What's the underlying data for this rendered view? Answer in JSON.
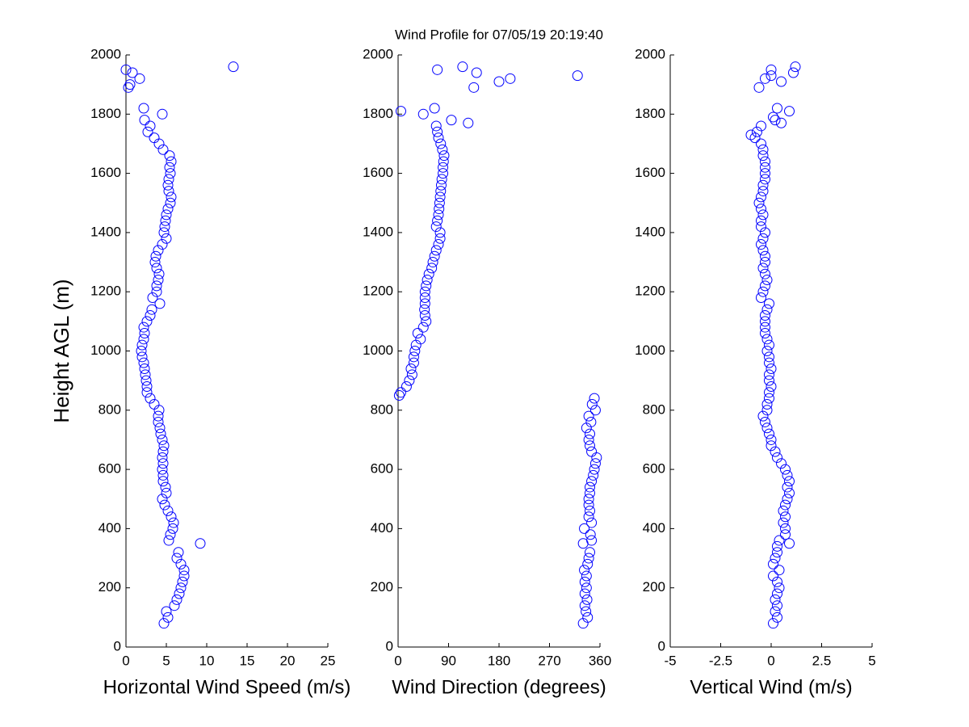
{
  "chart_data": [
    {
      "type": "scatter",
      "title": "Wind Profile for  07/05/19 20:19:40",
      "xlabel": "Horizontal Wind Speed (m/s)",
      "ylabel": "Height AGL (m)",
      "color": "#0000ff",
      "xlim": [
        0,
        25
      ],
      "xticks": [
        0,
        5,
        10,
        15,
        20,
        25
      ],
      "ylim": [
        0,
        2000
      ],
      "yticks": [
        0,
        200,
        400,
        600,
        800,
        1000,
        1200,
        1400,
        1600,
        1800,
        2000
      ],
      "x": [
        4.7,
        5.2,
        5.0,
        6.0,
        6.3,
        6.6,
        6.8,
        7.0,
        7.2,
        7.2,
        6.8,
        6.3,
        6.5,
        9.2,
        5.3,
        5.5,
        5.8,
        5.9,
        5.6,
        5.2,
        4.8,
        4.5,
        5.0,
        4.9,
        4.6,
        4.6,
        4.5,
        4.6,
        4.5,
        4.6,
        4.7,
        4.5,
        4.3,
        4.2,
        4.0,
        4.0,
        4.1,
        3.5,
        3.0,
        2.6,
        2.6,
        2.5,
        2.4,
        2.3,
        2.2,
        2.0,
        1.9,
        2.0,
        2.2,
        2.3,
        2.2,
        2.6,
        3.0,
        3.2,
        4.2,
        3.3,
        3.8,
        3.8,
        4.0,
        4.1,
        3.8,
        3.6,
        3.7,
        4.0,
        4.5,
        5.0,
        4.7,
        4.8,
        4.9,
        5.0,
        5.2,
        5.5,
        5.6,
        5.3,
        5.2,
        5.3,
        5.5,
        5.4,
        5.6,
        5.4,
        4.6,
        4.1,
        3.5,
        2.7,
        3.0,
        2.3,
        4.5,
        2.2,
        0.3,
        0.5,
        1.7,
        0.8,
        0.0,
        13.3
      ],
      "y": [
        80,
        100,
        120,
        140,
        160,
        180,
        200,
        220,
        240,
        260,
        280,
        300,
        320,
        350,
        360,
        380,
        400,
        420,
        440,
        460,
        480,
        500,
        520,
        540,
        560,
        580,
        600,
        620,
        640,
        660,
        680,
        700,
        720,
        740,
        760,
        780,
        800,
        820,
        840,
        860,
        880,
        900,
        920,
        940,
        960,
        980,
        1000,
        1020,
        1040,
        1060,
        1080,
        1100,
        1120,
        1140,
        1160,
        1180,
        1200,
        1220,
        1240,
        1260,
        1280,
        1300,
        1320,
        1340,
        1360,
        1380,
        1400,
        1420,
        1440,
        1460,
        1480,
        1500,
        1520,
        1540,
        1560,
        1580,
        1600,
        1620,
        1640,
        1660,
        1680,
        1700,
        1720,
        1740,
        1760,
        1780,
        1800,
        1820,
        1890,
        1900,
        1920,
        1940,
        1950,
        1960
      ]
    },
    {
      "type": "scatter",
      "xlabel": "Wind Direction (degrees)",
      "color": "#0000ff",
      "xlim": [
        0,
        360
      ],
      "xticks": [
        0,
        90,
        180,
        270,
        360
      ],
      "ylim": [
        0,
        2000
      ],
      "yticks": [
        0,
        200,
        400,
        600,
        800,
        1000,
        1200,
        1400,
        1600,
        1800,
        2000
      ],
      "x": [
        330,
        338,
        335,
        333,
        337,
        333,
        336,
        333,
        336,
        332,
        338,
        340,
        342,
        330,
        345,
        343,
        332,
        345,
        340,
        342,
        340,
        340,
        342,
        342,
        345,
        348,
        350,
        352,
        354,
        345,
        342,
        340,
        342,
        336,
        344,
        340,
        352,
        346,
        350,
        2,
        5,
        15,
        20,
        25,
        23,
        28,
        28,
        30,
        32,
        40,
        35,
        45,
        50,
        48,
        47,
        48,
        48,
        48,
        50,
        52,
        55,
        60,
        62,
        65,
        68,
        72,
        75,
        75,
        68,
        70,
        72,
        73,
        74,
        75,
        76,
        77,
        78,
        80,
        80,
        81,
        82,
        79,
        76,
        72,
        70,
        68,
        125,
        95,
        45,
        5,
        65,
        135,
        180,
        200,
        320,
        140,
        70,
        115
      ],
      "y": [
        80,
        100,
        120,
        140,
        160,
        180,
        200,
        220,
        240,
        260,
        280,
        300,
        320,
        350,
        360,
        380,
        400,
        420,
        440,
        460,
        480,
        500,
        520,
        540,
        560,
        580,
        600,
        620,
        640,
        660,
        680,
        700,
        720,
        740,
        760,
        780,
        800,
        820,
        840,
        850,
        860,
        880,
        900,
        920,
        940,
        960,
        980,
        1000,
        1020,
        1040,
        1060,
        1080,
        1100,
        1120,
        1140,
        1160,
        1180,
        1200,
        1220,
        1240,
        1260,
        1280,
        1300,
        1320,
        1340,
        1360,
        1380,
        1400,
        1420,
        1440,
        1460,
        1480,
        1500,
        1520,
        1540,
        1560,
        1580,
        1600,
        1620,
        1640,
        1660,
        1680,
        1700,
        1720,
        1740,
        1760,
        1770,
        1780,
        1800,
        1810,
        1820,
        1890,
        1910,
        1920,
        1930,
        1940,
        1950,
        1960
      ]
    },
    {
      "type": "scatter",
      "xlabel": "Vertical Wind (m/s)",
      "color": "#0000ff",
      "xlim": [
        -5,
        5
      ],
      "xticks": [
        -5,
        -2.5,
        0,
        2.5,
        5
      ],
      "ylim": [
        0,
        2000
      ],
      "yticks": [
        0,
        200,
        400,
        600,
        800,
        1000,
        1200,
        1400,
        1600,
        1800,
        2000
      ],
      "x": [
        0.1,
        0.3,
        0.2,
        0.3,
        0.2,
        0.3,
        0.4,
        0.3,
        0.1,
        0.4,
        0.1,
        0.2,
        0.3,
        0.3,
        0.9,
        0.4,
        0.7,
        0.7,
        0.6,
        0.7,
        0.6,
        0.7,
        0.8,
        0.9,
        0.8,
        0.9,
        0.8,
        0.7,
        0.5,
        0.3,
        0.2,
        0.0,
        0.0,
        -0.1,
        -0.2,
        -0.3,
        -0.4,
        -0.2,
        -0.2,
        -0.1,
        -0.1,
        0.0,
        -0.1,
        -0.1,
        0.0,
        -0.1,
        -0.1,
        -0.2,
        -0.1,
        -0.2,
        -0.3,
        -0.3,
        -0.3,
        -0.3,
        -0.2,
        -0.1,
        -0.5,
        -0.4,
        -0.3,
        -0.2,
        -0.3,
        -0.4,
        -0.3,
        -0.3,
        -0.4,
        -0.5,
        -0.4,
        -0.3,
        -0.5,
        -0.5,
        -0.4,
        -0.5,
        -0.6,
        -0.5,
        -0.4,
        -0.4,
        -0.3,
        -0.3,
        -0.3,
        -0.3,
        -0.4,
        -0.4,
        -0.5,
        -0.8,
        -1.0,
        -0.7,
        -0.5,
        0.5,
        0.2,
        0.1,
        0.9,
        0.3,
        -0.6,
        0.5,
        -0.3,
        0.0,
        1.1,
        0.0,
        1.2
      ],
      "y": [
        80,
        100,
        120,
        140,
        160,
        180,
        200,
        220,
        240,
        260,
        280,
        300,
        320,
        340,
        350,
        360,
        380,
        400,
        420,
        440,
        460,
        480,
        500,
        520,
        540,
        560,
        580,
        600,
        620,
        640,
        660,
        680,
        700,
        720,
        740,
        760,
        780,
        800,
        820,
        840,
        860,
        880,
        900,
        920,
        940,
        960,
        980,
        1000,
        1020,
        1040,
        1060,
        1080,
        1100,
        1120,
        1140,
        1160,
        1180,
        1200,
        1220,
        1240,
        1260,
        1280,
        1300,
        1320,
        1340,
        1360,
        1380,
        1400,
        1420,
        1440,
        1460,
        1480,
        1500,
        1520,
        1540,
        1560,
        1580,
        1600,
        1620,
        1640,
        1660,
        1680,
        1700,
        1720,
        1730,
        1740,
        1760,
        1770,
        1780,
        1790,
        1810,
        1820,
        1890,
        1910,
        1920,
        1930,
        1940,
        1950,
        1960
      ]
    }
  ]
}
